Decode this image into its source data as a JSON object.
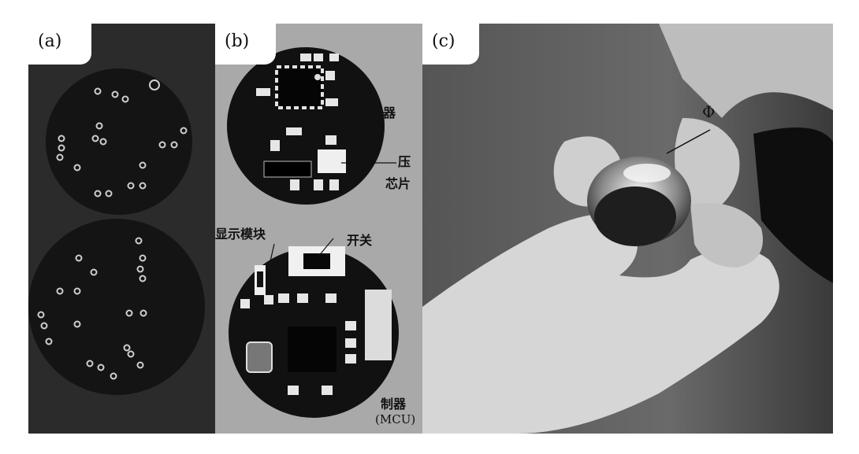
{
  "panels": [
    {
      "tag": "(a)"
    },
    {
      "tag": "(b)"
    },
    {
      "tag": "(c)"
    }
  ],
  "labels": {
    "sensor_partial": "器",
    "boost_partial": "压",
    "chip_partial": "芯片",
    "display_module": "显示模块",
    "switch": "开关",
    "mcu_cn_partial": "制器",
    "mcu_en": "(MCU)",
    "diameter_symbol": "Φ"
  },
  "colors": {
    "pcb": "#161616",
    "panel_a_bg": "#2a2a2a",
    "panel_b_bg": "#a9a9a9",
    "photo_bg": "#3d3d3d",
    "hand": "#d8d8d8",
    "component_white": "#ececec"
  }
}
